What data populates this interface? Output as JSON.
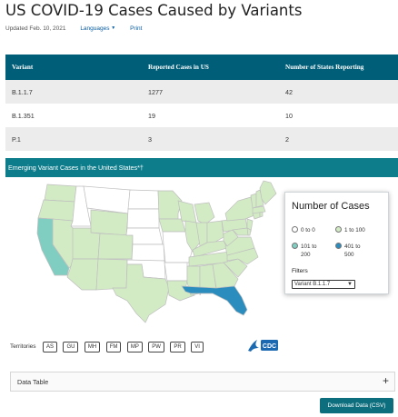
{
  "page": {
    "title": "US COVID-19 Cases Caused by Variants",
    "updated": "Updated Feb. 10, 2021",
    "languages_label": "Languages",
    "print_label": "Print"
  },
  "variants_table": {
    "headers": [
      "Variant",
      "Reported Cases in US",
      "Number of States Reporting"
    ],
    "rows": [
      [
        "B.1.1.7",
        "1277",
        "42"
      ],
      [
        "B.1.351",
        "19",
        "10"
      ],
      [
        "P.1",
        "3",
        "2"
      ]
    ]
  },
  "map_panel": {
    "title": "Emerging Variant Cases in the United States*†",
    "colors": {
      "zero": "#ffffff",
      "low": "#d2ebc4",
      "mid": "#80cdc1",
      "high": "#2b8cbe",
      "state_border": "#bfbfbf"
    },
    "legend": {
      "title": "Number of Cases",
      "items": [
        {
          "label": "0 to 0",
          "color": "#ffffff"
        },
        {
          "label": "1 to 100",
          "color": "#d2ebc4"
        },
        {
          "label": "101 to 200",
          "color": "#80cdc1"
        },
        {
          "label": "401 to 500",
          "color": "#2b8cbe"
        }
      ],
      "filters_label": "Filters",
      "filter_value": "Variant B.1.1.7"
    },
    "territories_label": "Territories",
    "territories": [
      "AS",
      "GU",
      "MH",
      "FM",
      "MP",
      "PW",
      "PR",
      "VI"
    ]
  },
  "data_table": {
    "label": "Data Table",
    "toggle": "+"
  },
  "download_label": "Download Data (CSV)",
  "logo": {
    "text": "CDC"
  }
}
